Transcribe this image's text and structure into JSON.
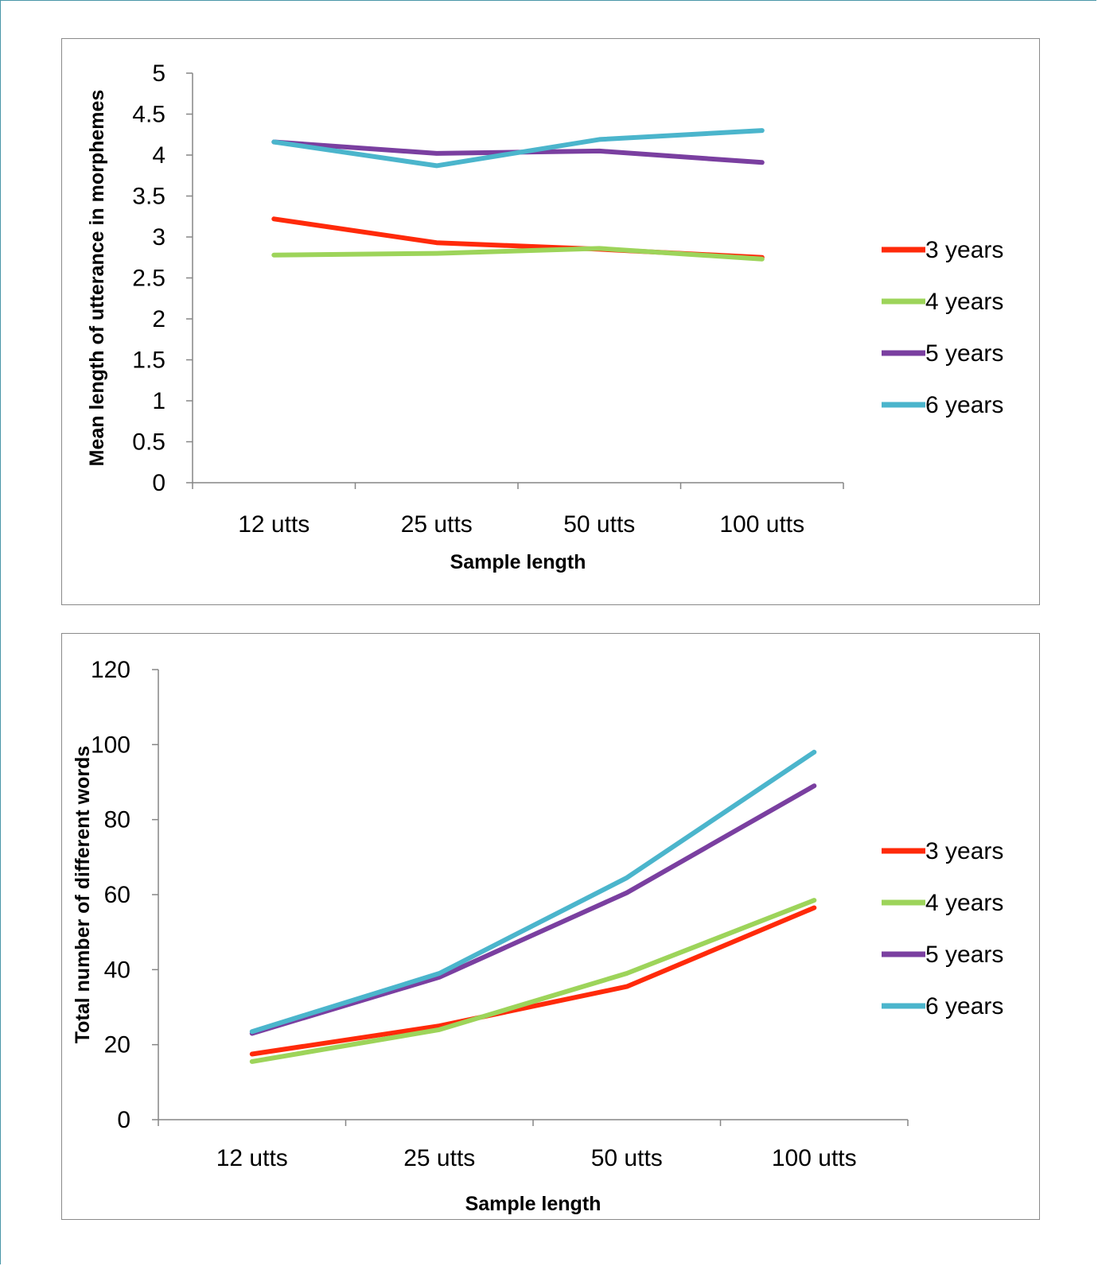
{
  "colors": {
    "3 years": "#ff2a0a",
    "4 years": "#9dd45a",
    "5 years": "#7a3fa0",
    "6 years": "#4bb5cc"
  },
  "chart_data": [
    {
      "type": "line",
      "title": "",
      "xlabel": "Sample length",
      "ylabel": "Mean length of utterance in morphemes",
      "categories": [
        "12 utts",
        "25 utts",
        "50 utts",
        "100 utts"
      ],
      "ylim": [
        0,
        5
      ],
      "yticks": [
        "0",
        "0.5",
        "1",
        "1.5",
        "2",
        "2.5",
        "3",
        "3.5",
        "4",
        "4.5",
        "5"
      ],
      "grid": false,
      "legend": "right",
      "series": [
        {
          "name": "3 years",
          "values": [
            3.22,
            2.93,
            2.85,
            2.75
          ]
        },
        {
          "name": "4 years",
          "values": [
            2.78,
            2.8,
            2.86,
            2.73
          ]
        },
        {
          "name": "5 years",
          "values": [
            4.16,
            4.02,
            4.05,
            3.91
          ]
        },
        {
          "name": "6 years",
          "values": [
            4.16,
            3.87,
            4.19,
            4.3
          ]
        }
      ]
    },
    {
      "type": "line",
      "title": "",
      "xlabel": "Sample length",
      "ylabel": "Total number of different words",
      "categories": [
        "12 utts",
        "25 utts",
        "50 utts",
        "100 utts"
      ],
      "ylim": [
        0,
        120
      ],
      "yticks": [
        "0",
        "20",
        "40",
        "60",
        "80",
        "100",
        "120"
      ],
      "grid": false,
      "legend": "right",
      "series": [
        {
          "name": "3 years",
          "values": [
            17.5,
            25,
            35.5,
            56.5
          ]
        },
        {
          "name": "4 years",
          "values": [
            15.5,
            24,
            39,
            58.5
          ]
        },
        {
          "name": "5 years",
          "values": [
            23,
            38,
            60.5,
            89
          ]
        },
        {
          "name": "6 years",
          "values": [
            23.5,
            39,
            64.5,
            98
          ]
        }
      ]
    }
  ]
}
